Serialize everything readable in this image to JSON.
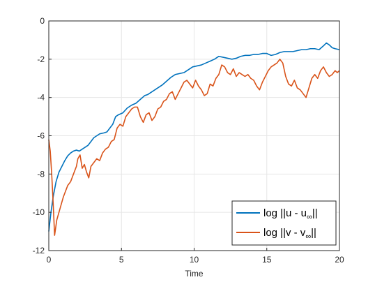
{
  "chart_data": {
    "type": "line",
    "title": "",
    "xlabel": "Time",
    "ylabel": "",
    "xlim": [
      0,
      20
    ],
    "ylim": [
      -12,
      0
    ],
    "xticks": [
      0,
      5,
      10,
      15,
      20
    ],
    "yticks": [
      0,
      -2,
      -4,
      -6,
      -8,
      -10,
      -12
    ],
    "grid": true,
    "legend_location": "bottom-right",
    "series": [
      {
        "name": "log ||u - u∞||",
        "legend_main": "log ||u - u",
        "legend_sub": "∞",
        "legend_end": "||",
        "color": "#0072BD",
        "points": [
          [
            0.0,
            -11.0
          ],
          [
            0.15,
            -10.0
          ],
          [
            0.3,
            -9.2
          ],
          [
            0.5,
            -8.4
          ],
          [
            0.7,
            -7.9
          ],
          [
            0.9,
            -7.6
          ],
          [
            1.1,
            -7.3
          ],
          [
            1.3,
            -7.05
          ],
          [
            1.5,
            -6.9
          ],
          [
            1.7,
            -6.8
          ],
          [
            1.9,
            -6.75
          ],
          [
            2.1,
            -6.8
          ],
          [
            2.3,
            -6.7
          ],
          [
            2.5,
            -6.6
          ],
          [
            2.7,
            -6.5
          ],
          [
            2.9,
            -6.3
          ],
          [
            3.1,
            -6.1
          ],
          [
            3.3,
            -6.0
          ],
          [
            3.5,
            -5.9
          ],
          [
            3.8,
            -5.85
          ],
          [
            4.0,
            -5.8
          ],
          [
            4.2,
            -5.6
          ],
          [
            4.4,
            -5.4
          ],
          [
            4.6,
            -5.0
          ],
          [
            4.8,
            -4.9
          ],
          [
            5.1,
            -4.8
          ],
          [
            5.4,
            -4.55
          ],
          [
            5.7,
            -4.4
          ],
          [
            6.0,
            -4.3
          ],
          [
            6.3,
            -4.1
          ],
          [
            6.6,
            -3.9
          ],
          [
            6.8,
            -3.85
          ],
          [
            7.1,
            -3.7
          ],
          [
            7.4,
            -3.55
          ],
          [
            7.8,
            -3.35
          ],
          [
            8.1,
            -3.15
          ],
          [
            8.4,
            -2.95
          ],
          [
            8.7,
            -2.8
          ],
          [
            9.0,
            -2.75
          ],
          [
            9.3,
            -2.7
          ],
          [
            9.6,
            -2.55
          ],
          [
            9.9,
            -2.4
          ],
          [
            10.2,
            -2.35
          ],
          [
            10.5,
            -2.3
          ],
          [
            10.8,
            -2.2
          ],
          [
            11.1,
            -2.1
          ],
          [
            11.4,
            -2.0
          ],
          [
            11.7,
            -1.85
          ],
          [
            12.0,
            -1.9
          ],
          [
            12.3,
            -1.95
          ],
          [
            12.6,
            -2.0
          ],
          [
            12.9,
            -1.95
          ],
          [
            13.2,
            -1.85
          ],
          [
            13.5,
            -1.8
          ],
          [
            13.8,
            -1.8
          ],
          [
            14.1,
            -1.75
          ],
          [
            14.4,
            -1.75
          ],
          [
            14.7,
            -1.7
          ],
          [
            15.0,
            -1.7
          ],
          [
            15.3,
            -1.8
          ],
          [
            15.6,
            -1.75
          ],
          [
            15.9,
            -1.65
          ],
          [
            16.2,
            -1.6
          ],
          [
            16.5,
            -1.6
          ],
          [
            16.8,
            -1.6
          ],
          [
            17.1,
            -1.55
          ],
          [
            17.4,
            -1.5
          ],
          [
            17.7,
            -1.5
          ],
          [
            18.0,
            -1.45
          ],
          [
            18.3,
            -1.45
          ],
          [
            18.6,
            -1.5
          ],
          [
            18.9,
            -1.3
          ],
          [
            19.1,
            -1.15
          ],
          [
            19.3,
            -1.25
          ],
          [
            19.5,
            -1.4
          ],
          [
            19.7,
            -1.45
          ],
          [
            20.0,
            -1.5
          ]
        ]
      },
      {
        "name": "log ||v - v∞||",
        "legend_main": "log ||v - v",
        "legend_sub": "∞",
        "legend_end": "||",
        "color": "#D95319",
        "points": [
          [
            0.0,
            -6.2
          ],
          [
            0.1,
            -6.8
          ],
          [
            0.2,
            -8.0
          ],
          [
            0.3,
            -9.5
          ],
          [
            0.4,
            -11.2
          ],
          [
            0.55,
            -10.4
          ],
          [
            0.7,
            -10.0
          ],
          [
            0.85,
            -9.6
          ],
          [
            1.0,
            -9.2
          ],
          [
            1.15,
            -8.9
          ],
          [
            1.3,
            -8.6
          ],
          [
            1.5,
            -8.4
          ],
          [
            1.7,
            -8.0
          ],
          [
            1.9,
            -7.6
          ],
          [
            2.0,
            -7.2
          ],
          [
            2.15,
            -7.0
          ],
          [
            2.3,
            -7.7
          ],
          [
            2.45,
            -7.5
          ],
          [
            2.6,
            -7.9
          ],
          [
            2.75,
            -8.2
          ],
          [
            2.9,
            -7.6
          ],
          [
            3.1,
            -7.4
          ],
          [
            3.3,
            -7.2
          ],
          [
            3.5,
            -7.3
          ],
          [
            3.7,
            -6.9
          ],
          [
            3.9,
            -6.7
          ],
          [
            4.1,
            -6.6
          ],
          [
            4.3,
            -6.3
          ],
          [
            4.5,
            -6.2
          ],
          [
            4.7,
            -5.6
          ],
          [
            4.9,
            -5.4
          ],
          [
            5.1,
            -5.5
          ],
          [
            5.3,
            -5.0
          ],
          [
            5.5,
            -4.8
          ],
          [
            5.7,
            -4.6
          ],
          [
            5.9,
            -4.5
          ],
          [
            6.1,
            -4.5
          ],
          [
            6.3,
            -5.0
          ],
          [
            6.5,
            -5.3
          ],
          [
            6.7,
            -4.9
          ],
          [
            6.9,
            -4.8
          ],
          [
            7.1,
            -5.2
          ],
          [
            7.3,
            -5.0
          ],
          [
            7.5,
            -4.6
          ],
          [
            7.7,
            -4.5
          ],
          [
            7.9,
            -4.2
          ],
          [
            8.1,
            -4.1
          ],
          [
            8.3,
            -3.8
          ],
          [
            8.5,
            -3.7
          ],
          [
            8.7,
            -4.1
          ],
          [
            8.9,
            -3.8
          ],
          [
            9.1,
            -3.5
          ],
          [
            9.3,
            -3.2
          ],
          [
            9.5,
            -3.1
          ],
          [
            9.7,
            -3.3
          ],
          [
            9.9,
            -3.5
          ],
          [
            10.1,
            -3.1
          ],
          [
            10.3,
            -3.4
          ],
          [
            10.5,
            -3.6
          ],
          [
            10.7,
            -3.9
          ],
          [
            10.9,
            -3.8
          ],
          [
            11.1,
            -3.3
          ],
          [
            11.3,
            -3.4
          ],
          [
            11.5,
            -3.0
          ],
          [
            11.7,
            -2.8
          ],
          [
            11.9,
            -2.3
          ],
          [
            12.1,
            -2.4
          ],
          [
            12.3,
            -2.7
          ],
          [
            12.5,
            -2.8
          ],
          [
            12.7,
            -2.5
          ],
          [
            12.9,
            -2.9
          ],
          [
            13.1,
            -2.7
          ],
          [
            13.3,
            -2.8
          ],
          [
            13.5,
            -2.9
          ],
          [
            13.7,
            -2.8
          ],
          [
            13.9,
            -3.0
          ],
          [
            14.1,
            -3.1
          ],
          [
            14.3,
            -3.4
          ],
          [
            14.5,
            -3.6
          ],
          [
            14.7,
            -3.2
          ],
          [
            14.9,
            -2.9
          ],
          [
            15.1,
            -2.6
          ],
          [
            15.3,
            -2.4
          ],
          [
            15.5,
            -2.3
          ],
          [
            15.7,
            -2.2
          ],
          [
            15.9,
            -2.0
          ],
          [
            16.1,
            -2.2
          ],
          [
            16.3,
            -2.9
          ],
          [
            16.5,
            -3.3
          ],
          [
            16.7,
            -3.4
          ],
          [
            16.9,
            -3.1
          ],
          [
            17.1,
            -3.5
          ],
          [
            17.3,
            -3.6
          ],
          [
            17.5,
            -3.8
          ],
          [
            17.7,
            -4.0
          ],
          [
            17.9,
            -3.5
          ],
          [
            18.1,
            -3.0
          ],
          [
            18.3,
            -2.8
          ],
          [
            18.5,
            -3.0
          ],
          [
            18.7,
            -2.6
          ],
          [
            18.9,
            -2.4
          ],
          [
            19.1,
            -2.7
          ],
          [
            19.3,
            -2.9
          ],
          [
            19.5,
            -2.8
          ],
          [
            19.7,
            -2.6
          ],
          [
            19.85,
            -2.7
          ],
          [
            20.0,
            -2.6
          ]
        ]
      }
    ]
  }
}
